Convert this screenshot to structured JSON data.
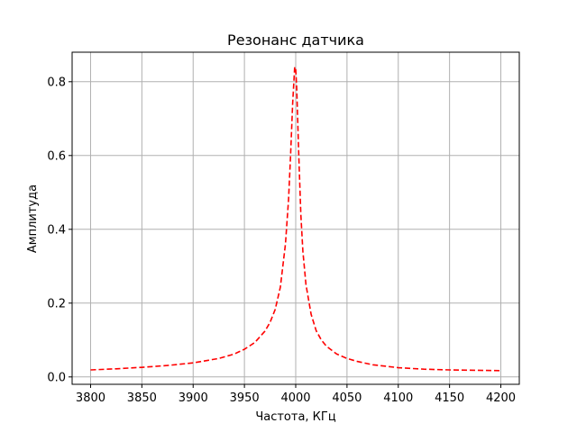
{
  "chart_data": {
    "type": "line",
    "title": "Резонанс датчика",
    "xlabel": "Частота, КГц",
    "ylabel": "Амплитуда",
    "xlim": [
      3782,
      4218
    ],
    "ylim": [
      -0.02,
      0.88
    ],
    "xticks": [
      3800,
      3850,
      3900,
      3950,
      4000,
      4050,
      4100,
      4150,
      4200
    ],
    "xtick_labels": [
      "3800",
      "3850",
      "3900",
      "3950",
      "4000",
      "4050",
      "4100",
      "4150",
      "4200"
    ],
    "yticks": [
      0.0,
      0.2,
      0.4,
      0.6,
      0.8
    ],
    "ytick_labels": [
      "0.0",
      "0.2",
      "0.4",
      "0.6",
      "0.8"
    ],
    "grid": true,
    "series": [
      {
        "color": "#ff0000",
        "line_style": "dashed",
        "x": [
          3800,
          3825,
          3850,
          3875,
          3900,
          3925,
          3940,
          3950,
          3960,
          3970,
          3975,
          3980,
          3985,
          3990,
          3993,
          3995,
          3997,
          3999,
          4000,
          4001,
          4003,
          4005,
          4007,
          4010,
          4015,
          4020,
          4025,
          4030,
          4040,
          4050,
          4060,
          4075,
          4100,
          4125,
          4150,
          4175,
          4199
        ],
        "y": [
          0.019,
          0.022,
          0.026,
          0.031,
          0.038,
          0.05,
          0.062,
          0.075,
          0.093,
          0.124,
          0.148,
          0.183,
          0.243,
          0.36,
          0.48,
          0.6,
          0.74,
          0.84,
          0.835,
          0.78,
          0.6,
          0.44,
          0.34,
          0.25,
          0.17,
          0.125,
          0.1,
          0.083,
          0.062,
          0.05,
          0.042,
          0.033,
          0.025,
          0.021,
          0.019,
          0.018,
          0.017
        ]
      }
    ]
  }
}
